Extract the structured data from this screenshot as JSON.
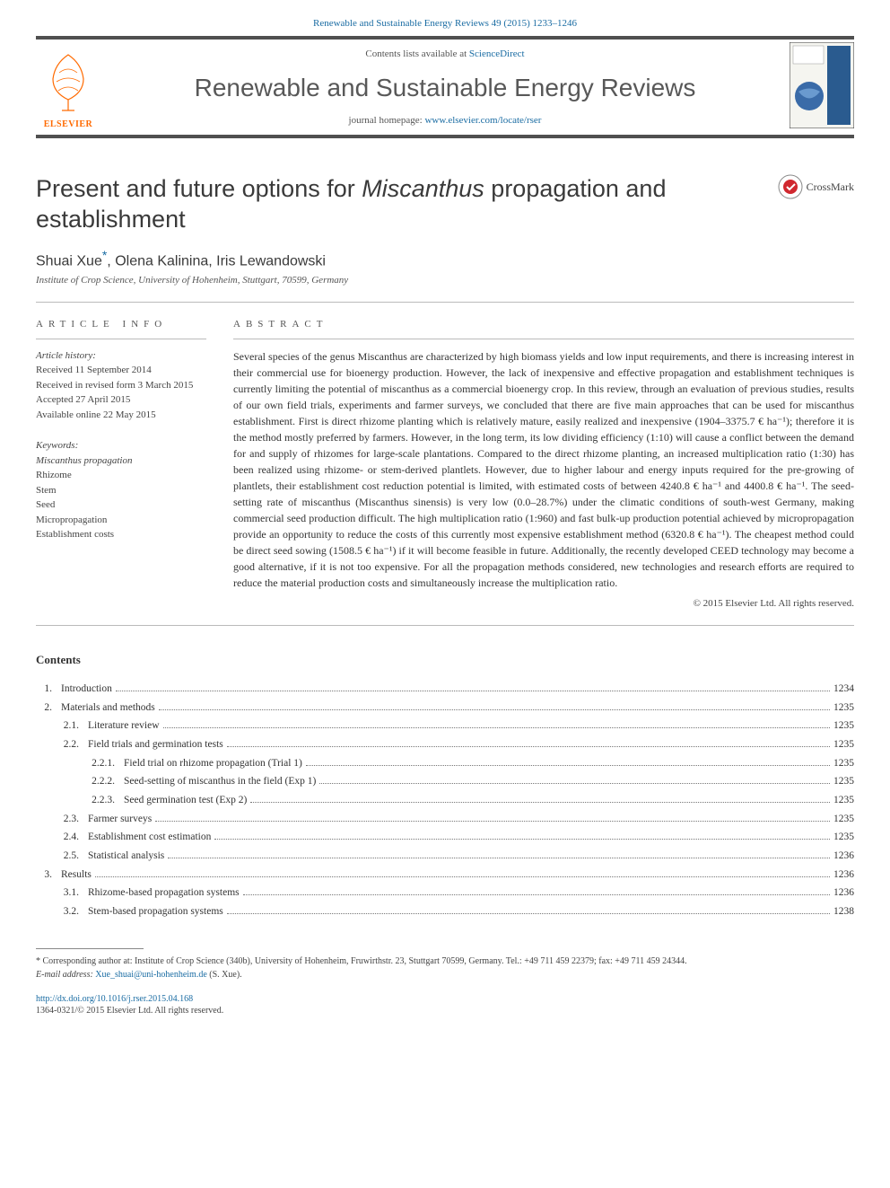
{
  "citation_text": "Renewable and Sustainable Energy Reviews 49 (2015) 1233–1246",
  "header": {
    "contents_prefix": "Contents lists available at ",
    "contents_link": "ScienceDirect",
    "journal_title": "Renewable and Sustainable Energy Reviews",
    "homepage_prefix": "journal homepage: ",
    "homepage_link": "www.elsevier.com/locate/rser",
    "publisher": "ELSEVIER"
  },
  "colors": {
    "link": "#1a6ca3",
    "band_border": "#505050",
    "elsevier_orange": "#ff6a00",
    "text": "#333333",
    "muted": "#555555"
  },
  "article": {
    "title_pre": "Present and future options for ",
    "title_italic": "Miscanthus",
    "title_post": " propagation and establishment",
    "crossmark": "CrossMark",
    "authors": "Shuai Xue",
    "authors_corr_mark": "*",
    "authors_rest": ", Olena Kalinina, Iris Lewandowski",
    "affiliation": "Institute of Crop Science, University of Hohenheim, Stuttgart, 70599, Germany"
  },
  "info": {
    "heading": "ARTICLE INFO",
    "history_label": "Article history:",
    "received": "Received 11 September 2014",
    "revised": "Received in revised form 3 March 2015",
    "accepted": "Accepted 27 April 2015",
    "online": "Available online 22 May 2015",
    "keywords_label": "Keywords:",
    "kw1": "Miscanthus propagation",
    "kw2": "Rhizome",
    "kw3": "Stem",
    "kw4": "Seed",
    "kw5": "Micropropagation",
    "kw6": "Establishment costs"
  },
  "abstract": {
    "heading": "ABSTRACT",
    "text": "Several species of the genus Miscanthus are characterized by high biomass yields and low input requirements, and there is increasing interest in their commercial use for bioenergy production. However, the lack of inexpensive and effective propagation and establishment techniques is currently limiting the potential of miscanthus as a commercial bioenergy crop. In this review, through an evaluation of previous studies, results of our own field trials, experiments and farmer surveys, we concluded that there are five main approaches that can be used for miscanthus establishment. First is direct rhizome planting which is relatively mature, easily realized and inexpensive (1904–3375.7 € ha⁻¹); therefore it is the method mostly preferred by farmers. However, in the long term, its low dividing efficiency (1:10) will cause a conflict between the demand for and supply of rhizomes for large-scale plantations. Compared to the direct rhizome planting, an increased multiplication ratio (1:30) has been realized using rhizome- or stem-derived plantlets. However, due to higher labour and energy inputs required for the pre-growing of plantlets, their establishment cost reduction potential is limited, with estimated costs of between 4240.8 € ha⁻¹ and 4400.8 € ha⁻¹. The seed-setting rate of miscanthus (Miscanthus sinensis) is very low (0.0–28.7%) under the climatic conditions of south-west Germany, making commercial seed production difficult. The high multiplication ratio (1:960) and fast bulk-up production potential achieved by micropropagation provide an opportunity to reduce the costs of this currently most expensive establishment method (6320.8 € ha⁻¹). The cheapest method could be direct seed sowing (1508.5 € ha⁻¹) if it will become feasible in future. Additionally, the recently developed CEED technology may become a good alternative, if it is not too expensive. For all the propagation methods considered, new technologies and research efforts are required to reduce the material production costs and simultaneously increase the multiplication ratio.",
    "copyright": "© 2015 Elsevier Ltd. All rights reserved."
  },
  "contents": {
    "heading": "Contents",
    "items": [
      {
        "num": "1.",
        "level": 1,
        "title": "Introduction",
        "page": "1234"
      },
      {
        "num": "2.",
        "level": 1,
        "title": "Materials and methods",
        "page": "1235"
      },
      {
        "num": "2.1.",
        "level": 2,
        "title": "Literature review",
        "page": "1235"
      },
      {
        "num": "2.2.",
        "level": 2,
        "title": "Field trials and germination tests",
        "page": "1235"
      },
      {
        "num": "2.2.1.",
        "level": 3,
        "title": "Field trial on rhizome propagation (Trial 1)",
        "page": "1235"
      },
      {
        "num": "2.2.2.",
        "level": 3,
        "title": "Seed-setting of miscanthus in the field (Exp 1)",
        "page": "1235"
      },
      {
        "num": "2.2.3.",
        "level": 3,
        "title": "Seed germination test (Exp 2)",
        "page": "1235"
      },
      {
        "num": "2.3.",
        "level": 2,
        "title": "Farmer surveys",
        "page": "1235"
      },
      {
        "num": "2.4.",
        "level": 2,
        "title": "Establishment cost estimation",
        "page": "1235"
      },
      {
        "num": "2.5.",
        "level": 2,
        "title": "Statistical analysis",
        "page": "1236"
      },
      {
        "num": "3.",
        "level": 1,
        "title": "Results",
        "page": "1236"
      },
      {
        "num": "3.1.",
        "level": 2,
        "title": "Rhizome-based propagation systems",
        "page": "1236"
      },
      {
        "num": "3.2.",
        "level": 2,
        "title": "Stem-based propagation systems",
        "page": "1238"
      }
    ]
  },
  "footnote": {
    "corr_mark": "*",
    "corr_text": "Corresponding author at: Institute of Crop Science (340b), University of Hohenheim, Fruwirthstr. 23, Stuttgart 70599, Germany. Tel.: +49 711 459 22379; fax: +49 711 459 24344.",
    "email_label": "E-mail address: ",
    "email": "Xue_shuai@uni-hohenheim.de",
    "email_suffix": " (S. Xue).",
    "doi": "http://dx.doi.org/10.1016/j.rser.2015.04.168",
    "issn": "1364-0321/© 2015 Elsevier Ltd. All rights reserved."
  }
}
